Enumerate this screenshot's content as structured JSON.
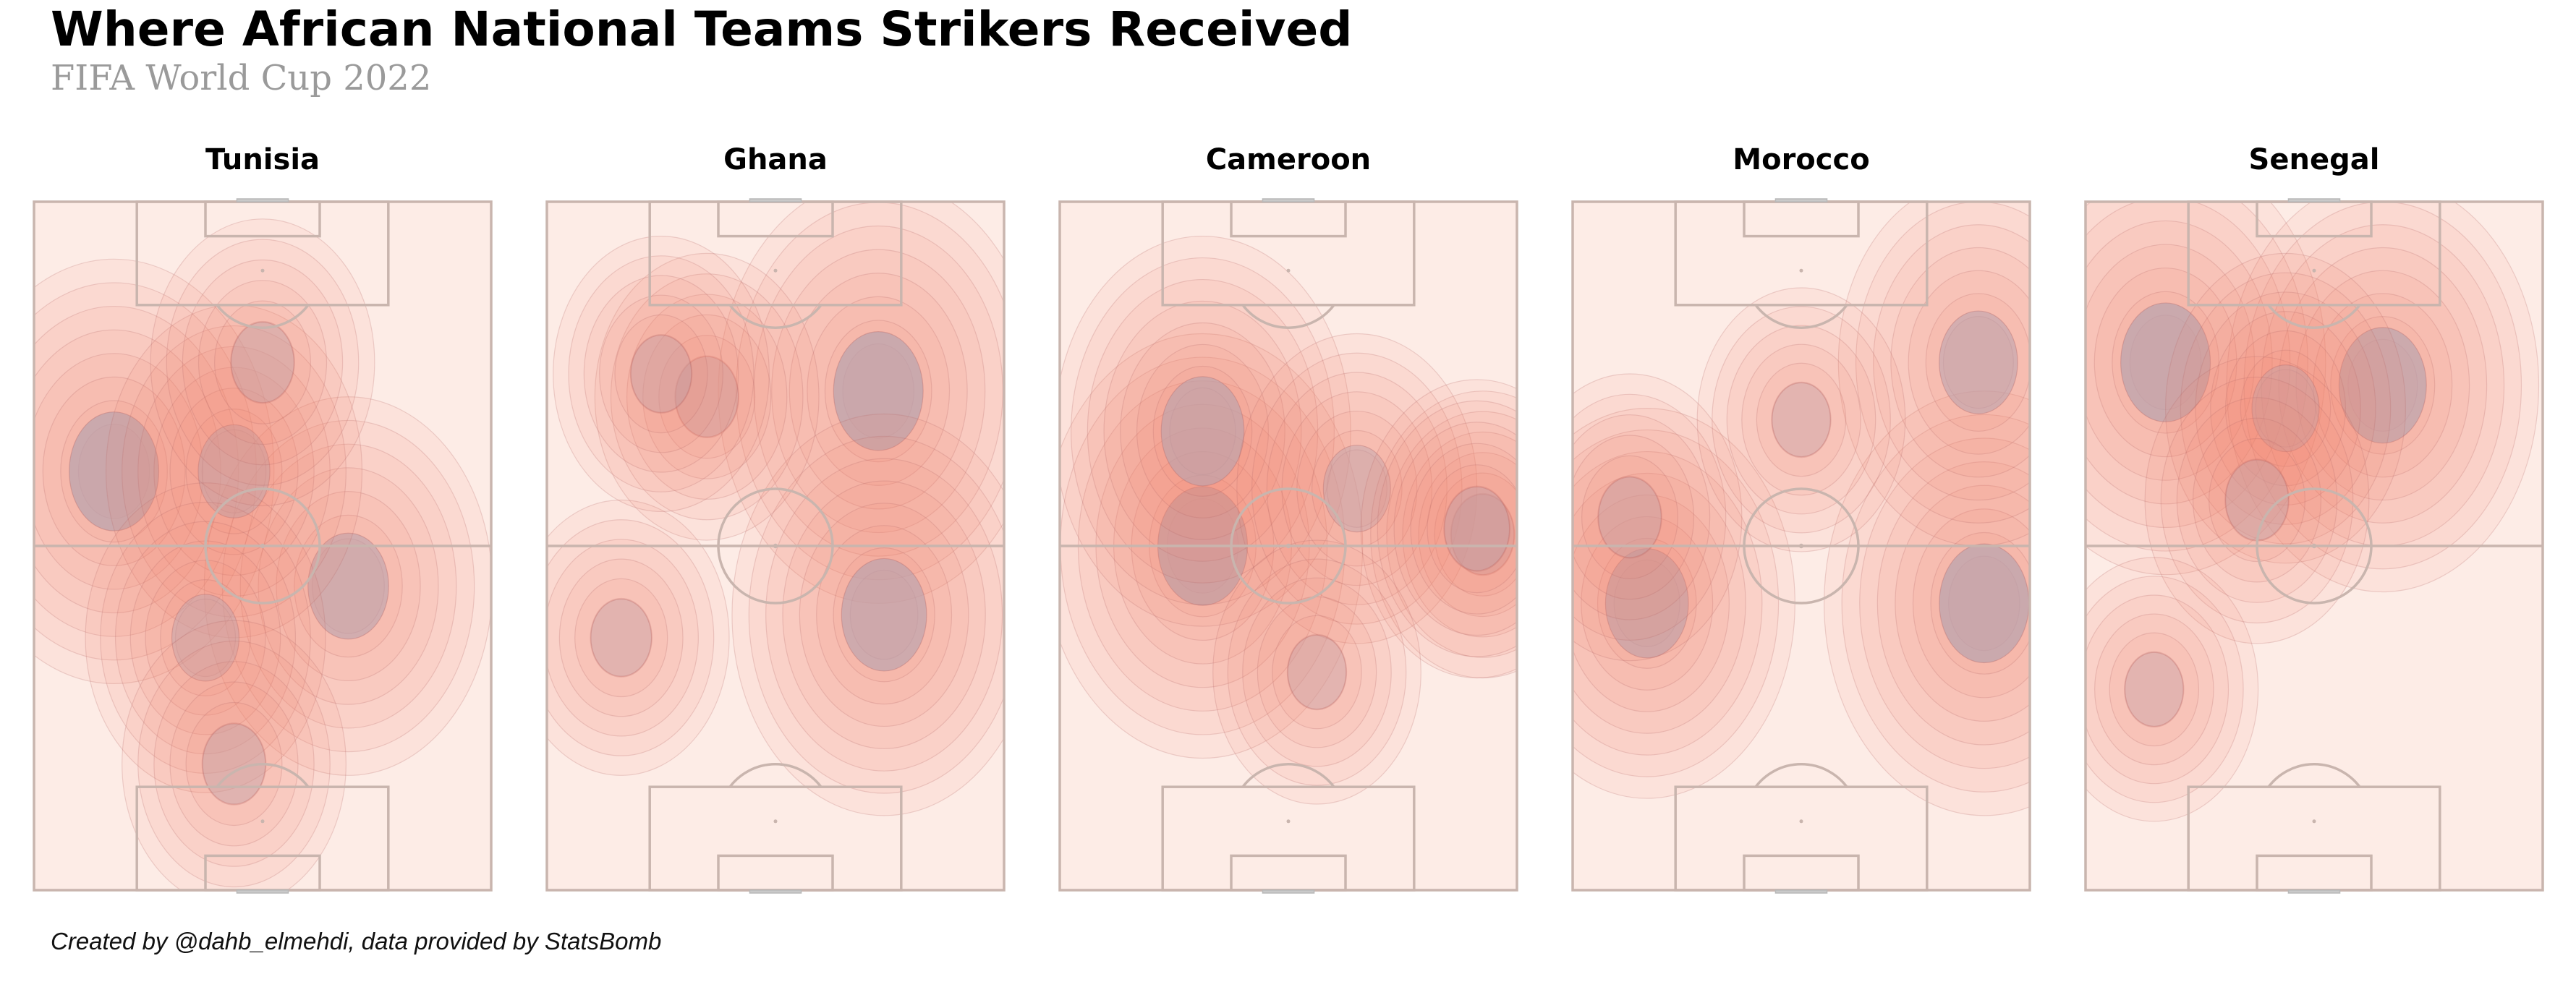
{
  "header": {
    "title": "Where African National Teams Strikers Received",
    "subtitle": "FIFA World Cup 2022"
  },
  "footer": {
    "credit": "Created by @dahb_elmehdi, data provided by StatsBomb"
  },
  "style": {
    "pitch_fill": "#fdece6",
    "pitch_line": "#c9b5ae",
    "density_color": "#f4846f",
    "density_line": "#b86d6d",
    "peak_color": "#b8a2ae"
  },
  "chart_data": [
    {
      "type": "heatmap",
      "title": "Tunisia",
      "pitch": {
        "length": 120,
        "width": 80,
        "orientation": "vertical",
        "attack_direction": "up"
      },
      "hotspots": [
        {
          "x": 73,
          "y": 14,
          "weight": 1.0
        },
        {
          "x": 53,
          "y": 55,
          "weight": 0.8
        },
        {
          "x": 73,
          "y": 35,
          "weight": 0.6
        },
        {
          "x": 44,
          "y": 30,
          "weight": 0.5
        },
        {
          "x": 92,
          "y": 40,
          "weight": 0.4
        },
        {
          "x": 22,
          "y": 35,
          "weight": 0.4
        }
      ]
    },
    {
      "type": "heatmap",
      "title": "Ghana",
      "pitch": {
        "length": 120,
        "width": 80,
        "orientation": "vertical",
        "attack_direction": "up"
      },
      "hotspots": [
        {
          "x": 87,
          "y": 58,
          "weight": 1.0
        },
        {
          "x": 48,
          "y": 59,
          "weight": 0.9
        },
        {
          "x": 86,
          "y": 28,
          "weight": 0.4
        },
        {
          "x": 44,
          "y": 13,
          "weight": 0.35
        },
        {
          "x": 90,
          "y": 20,
          "weight": 0.35
        }
      ]
    },
    {
      "type": "heatmap",
      "title": "Cameroon",
      "pitch": {
        "length": 120,
        "width": 80,
        "orientation": "vertical",
        "attack_direction": "up"
      },
      "hotspots": [
        {
          "x": 60,
          "y": 25,
          "weight": 1.0
        },
        {
          "x": 80,
          "y": 25,
          "weight": 0.85
        },
        {
          "x": 70,
          "y": 52,
          "weight": 0.5
        },
        {
          "x": 62,
          "y": 74,
          "weight": 0.4
        },
        {
          "x": 63,
          "y": 73,
          "weight": 0.45
        },
        {
          "x": 38,
          "y": 45,
          "weight": 0.3
        }
      ]
    },
    {
      "type": "heatmap",
      "title": "Morocco",
      "pitch": {
        "length": 120,
        "width": 80,
        "orientation": "vertical",
        "attack_direction": "up"
      },
      "hotspots": [
        {
          "x": 50,
          "y": 72,
          "weight": 1.0
        },
        {
          "x": 92,
          "y": 71,
          "weight": 0.75
        },
        {
          "x": 50,
          "y": 13,
          "weight": 0.85
        },
        {
          "x": 65,
          "y": 10,
          "weight": 0.4
        },
        {
          "x": 82,
          "y": 40,
          "weight": 0.3
        }
      ]
    },
    {
      "type": "heatmap",
      "title": "Senegal",
      "pitch": {
        "length": 120,
        "width": 80,
        "orientation": "vertical",
        "attack_direction": "up"
      },
      "hotspots": [
        {
          "x": 92,
          "y": 14,
          "weight": 1.0
        },
        {
          "x": 88,
          "y": 52,
          "weight": 0.95
        },
        {
          "x": 84,
          "y": 35,
          "weight": 0.5
        },
        {
          "x": 68,
          "y": 30,
          "weight": 0.4
        },
        {
          "x": 35,
          "y": 12,
          "weight": 0.3
        }
      ]
    }
  ]
}
